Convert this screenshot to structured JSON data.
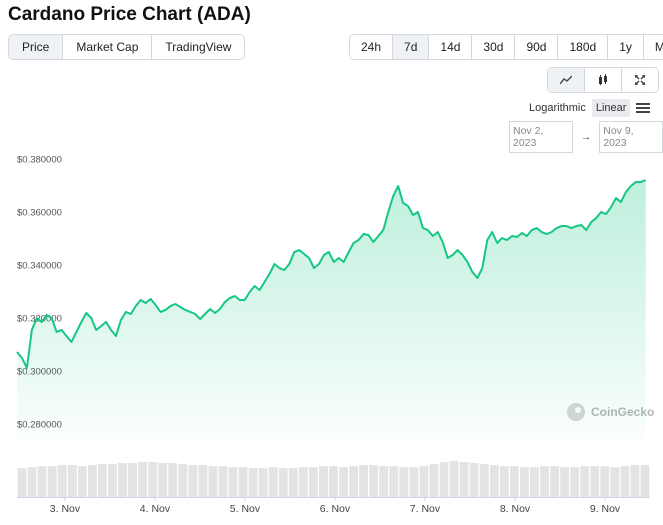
{
  "header": {
    "title": "Cardano Price Chart (ADA)"
  },
  "tabs": [
    {
      "label": "Price",
      "selected": true
    },
    {
      "label": "Market Cap",
      "selected": false
    },
    {
      "label": "TradingView",
      "selected": false
    }
  ],
  "ranges": [
    {
      "label": "24h",
      "selected": false
    },
    {
      "label": "7d",
      "selected": true
    },
    {
      "label": "14d",
      "selected": false
    },
    {
      "label": "30d",
      "selected": false
    },
    {
      "label": "90d",
      "selected": false
    },
    {
      "label": "180d",
      "selected": false
    },
    {
      "label": "1y",
      "selected": false
    },
    {
      "label": "Max",
      "selected": false
    }
  ],
  "scale_options": [
    {
      "label": "Logarithmic",
      "selected": false
    },
    {
      "label": "Linear",
      "selected": true
    }
  ],
  "date_range": {
    "from": "Nov 2, 2023",
    "separator": "→",
    "to": "Nov 9, 2023"
  },
  "watermark": "CoinGecko",
  "chart_data": {
    "type": "line",
    "log_scale": false,
    "grid": false,
    "x": [
      2.467,
      2.522,
      2.577,
      2.632,
      2.687,
      2.742,
      2.797,
      2.852,
      2.907,
      2.962,
      3.017,
      3.072,
      3.127,
      3.182,
      3.237,
      3.292,
      3.347,
      3.402,
      3.457,
      3.512,
      3.567,
      3.622,
      3.677,
      3.732,
      3.787,
      3.842,
      3.897,
      3.952,
      4.007,
      4.062,
      4.117,
      4.172,
      4.227,
      4.282,
      4.337,
      4.392,
      4.447,
      4.502,
      4.557,
      4.612,
      4.667,
      4.722,
      4.777,
      4.832,
      4.887,
      4.942,
      4.997,
      5.052,
      5.107,
      5.162,
      5.217,
      5.272,
      5.327,
      5.382,
      5.437,
      5.492,
      5.547,
      5.602,
      5.657,
      5.712,
      5.767,
      5.822,
      5.877,
      5.932,
      5.987,
      6.042,
      6.097,
      6.152,
      6.207,
      6.262,
      6.317,
      6.372,
      6.427,
      6.482,
      6.537,
      6.592,
      6.647,
      6.702,
      6.757,
      6.812,
      6.867,
      6.922,
      6.977,
      7.032,
      7.087,
      7.142,
      7.197,
      7.252,
      7.307,
      7.362,
      7.417,
      7.472,
      7.527,
      7.582,
      7.637,
      7.692,
      7.747,
      7.802,
      7.857,
      7.912,
      7.967,
      8.022,
      8.077,
      8.132,
      8.187,
      8.242,
      8.297,
      8.352,
      8.407,
      8.462,
      8.517,
      8.572,
      8.627,
      8.682,
      8.737,
      8.792,
      8.847,
      8.902,
      8.957,
      9.012,
      9.067,
      9.122,
      9.177,
      9.232,
      9.287,
      9.342,
      9.397,
      9.452
    ],
    "series": [
      {
        "color": "#16c784",
        "values": [
          0.30754,
          0.30527,
          0.3015,
          0.31584,
          0.32037,
          0.31886,
          0.3215,
          0.32037,
          0.31509,
          0.31584,
          0.31358,
          0.31131,
          0.31509,
          0.31886,
          0.32226,
          0.32037,
          0.31584,
          0.31735,
          0.31886,
          0.31584,
          0.31358,
          0.31962,
          0.32264,
          0.32188,
          0.3249,
          0.32716,
          0.32603,
          0.32754,
          0.32528,
          0.32264,
          0.32339,
          0.3249,
          0.32565,
          0.32452,
          0.32339,
          0.32264,
          0.32188,
          0.31999,
          0.32188,
          0.32377,
          0.32226,
          0.32377,
          0.32641,
          0.32792,
          0.32867,
          0.32716,
          0.32716,
          0.33018,
          0.33245,
          0.33094,
          0.33396,
          0.33698,
          0.34075,
          0.33924,
          0.33849,
          0.34075,
          0.34528,
          0.34603,
          0.34452,
          0.34301,
          0.33924,
          0.34075,
          0.34415,
          0.34528,
          0.34151,
          0.34301,
          0.34151,
          0.34528,
          0.34868,
          0.34981,
          0.35207,
          0.35169,
          0.34905,
          0.35132,
          0.35358,
          0.36038,
          0.36641,
          0.37019,
          0.36377,
          0.36264,
          0.35924,
          0.36038,
          0.35434,
          0.35358,
          0.35132,
          0.35283,
          0.34905,
          0.34301,
          0.34415,
          0.34603,
          0.34415,
          0.34151,
          0.33773,
          0.33547,
          0.33924,
          0.34981,
          0.35283,
          0.34868,
          0.35056,
          0.34981,
          0.35132,
          0.35094,
          0.35245,
          0.35132,
          0.35358,
          0.35434,
          0.35283,
          0.35207,
          0.35283,
          0.35434,
          0.35509,
          0.35509,
          0.35434,
          0.35509,
          0.35547,
          0.35358,
          0.3566,
          0.35811,
          0.36038,
          0.35962,
          0.36226,
          0.36566,
          0.36415,
          0.36792,
          0.37019,
          0.3717,
          0.3717,
          0.37245
        ]
      }
    ],
    "xlim": [
      2.467,
      9.5
    ],
    "xticks": [
      {
        "value": 3,
        "label": "3. Nov"
      },
      {
        "value": 4,
        "label": "4. Nov"
      },
      {
        "value": 5,
        "label": "5. Nov"
      },
      {
        "value": 6,
        "label": "6. Nov"
      },
      {
        "value": 7,
        "label": "7. Nov"
      },
      {
        "value": 8,
        "label": "8. Nov"
      },
      {
        "value": 9,
        "label": "9. Nov"
      }
    ],
    "ylim": [
      0.2743,
      0.3838
    ],
    "yticks": [
      {
        "value": 0.28,
        "label": "$0.280000"
      },
      {
        "value": 0.3,
        "label": "$0.300000"
      },
      {
        "value": 0.32,
        "label": "$0.320000"
      },
      {
        "value": 0.34,
        "label": "$0.340000"
      },
      {
        "value": 0.36,
        "label": "$0.360000"
      },
      {
        "value": 0.38,
        "label": "$0.380000"
      }
    ],
    "volume": {
      "color": "#e3e3e3",
      "values": [
        28,
        29,
        30,
        30,
        31,
        31,
        30,
        31,
        32,
        32,
        33,
        33,
        34,
        34,
        33,
        33,
        32,
        31,
        31,
        30,
        30,
        29,
        29,
        28,
        28,
        29,
        28,
        28,
        29,
        29,
        30,
        30,
        29,
        30,
        31,
        31,
        30,
        30,
        29,
        29,
        30,
        32,
        34,
        35,
        34,
        33,
        32,
        31,
        30,
        30,
        29,
        29,
        30,
        30,
        29,
        29,
        30,
        30,
        30,
        29,
        30,
        31,
        31
      ]
    }
  }
}
